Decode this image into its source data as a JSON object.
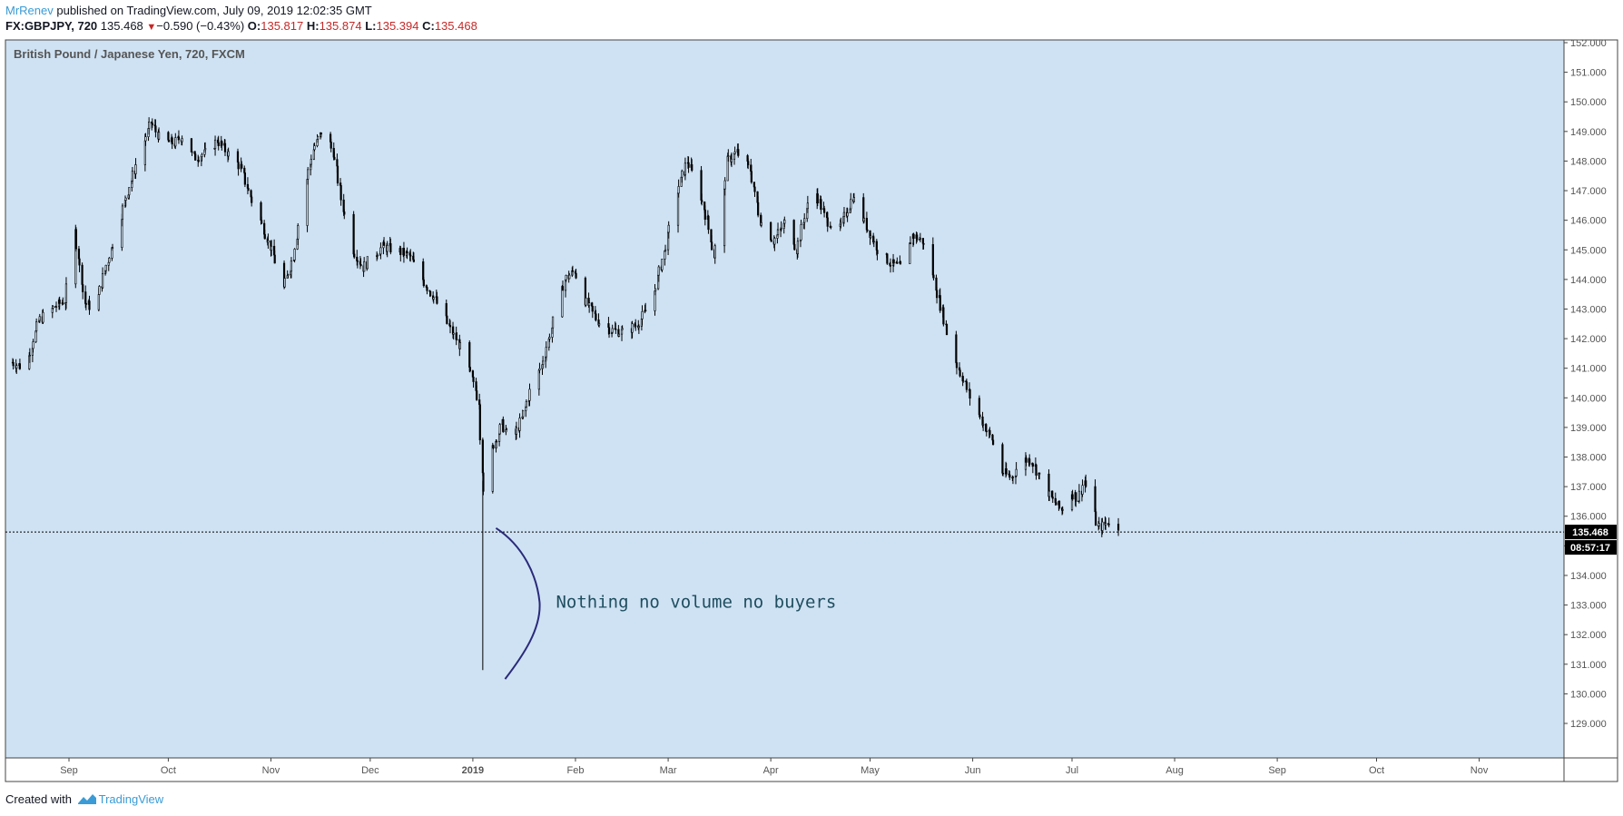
{
  "header": {
    "author": "MrRenev",
    "published_text": " published on TradingView.com, July 09, 2019 12:02:35 GMT",
    "symbol": "FX:GBPJPY, 720",
    "last": "135.468",
    "change": "−0.590 (−0.43%)",
    "o_label": "O:",
    "o_value": "135.817",
    "h_label": "H:",
    "h_value": "135.874",
    "l_label": "L:",
    "l_value": "135.394",
    "c_label": "C:",
    "c_value": "135.468"
  },
  "footer": {
    "created_with": "Created with",
    "brand": "TradingView"
  },
  "chart_data": {
    "type": "line",
    "title": "British Pound / Japanese Yen, 720, FXCM",
    "ylim": [
      128.6,
      152.1
    ],
    "yticks": [
      "129.000",
      "130.000",
      "131.000",
      "132.000",
      "133.000",
      "134.000",
      "135.000",
      "136.000",
      "137.000",
      "138.000",
      "139.000",
      "140.000",
      "141.000",
      "142.000",
      "143.000",
      "144.000",
      "145.000",
      "146.000",
      "147.000",
      "148.000",
      "149.000",
      "150.000",
      "151.000",
      "152.000"
    ],
    "xlim": [
      "2018-08-15",
      "2019-11-30"
    ],
    "xticks": [
      {
        "label": "Sep",
        "date": "2018-09-01"
      },
      {
        "label": "Oct",
        "date": "2018-10-01"
      },
      {
        "label": "Nov",
        "date": "2018-11-01"
      },
      {
        "label": "Dec",
        "date": "2018-12-01"
      },
      {
        "label": "2019",
        "date": "2019-01-01",
        "bold": true
      },
      {
        "label": "Feb",
        "date": "2019-02-01"
      },
      {
        "label": "Mar",
        "date": "2019-03-01"
      },
      {
        "label": "Apr",
        "date": "2019-04-01"
      },
      {
        "label": "May",
        "date": "2019-05-01"
      },
      {
        "label": "Jun",
        "date": "2019-06-01"
      },
      {
        "label": "Jul",
        "date": "2019-07-01"
      },
      {
        "label": "Aug",
        "date": "2019-08-01"
      },
      {
        "label": "Sep",
        "date": "2019-09-01"
      },
      {
        "label": "Oct",
        "date": "2019-10-01"
      },
      {
        "label": "Nov",
        "date": "2019-11-01"
      }
    ],
    "series": [
      {
        "points": [
          [
            "2018-08-15",
            141.2
          ],
          [
            "2018-08-19",
            141.0
          ],
          [
            "2018-08-23",
            142.6
          ],
          [
            "2018-08-27",
            143.0
          ],
          [
            "2018-08-31",
            143.3
          ],
          [
            "2018-09-03",
            145.6
          ],
          [
            "2018-09-06",
            143.2
          ],
          [
            "2018-09-09",
            143.0
          ],
          [
            "2018-09-12",
            144.3
          ],
          [
            "2018-09-15",
            145.4
          ],
          [
            "2018-09-19",
            147.0
          ],
          [
            "2018-09-23",
            148.4
          ],
          [
            "2018-09-26",
            149.3
          ],
          [
            "2018-09-29",
            148.7
          ],
          [
            "2018-10-03",
            148.6
          ],
          [
            "2018-10-06",
            148.9
          ],
          [
            "2018-10-09",
            148.1
          ],
          [
            "2018-10-13",
            148.3
          ],
          [
            "2018-10-16",
            148.7
          ],
          [
            "2018-10-19",
            148.3
          ],
          [
            "2018-10-23",
            147.8
          ],
          [
            "2018-10-26",
            146.8
          ],
          [
            "2018-10-30",
            145.7
          ],
          [
            "2018-11-02",
            144.8
          ],
          [
            "2018-11-05",
            143.7
          ],
          [
            "2018-11-08",
            144.8
          ],
          [
            "2018-11-11",
            146.9
          ],
          [
            "2018-11-14",
            148.4
          ],
          [
            "2018-11-17",
            149.1
          ],
          [
            "2018-11-20",
            148.3
          ],
          [
            "2018-11-23",
            146.4
          ],
          [
            "2018-11-26",
            145.0
          ],
          [
            "2018-11-29",
            144.4
          ],
          [
            "2018-12-02",
            144.8
          ],
          [
            "2018-12-05",
            145.1
          ],
          [
            "2018-12-09",
            145.0
          ],
          [
            "2018-12-13",
            144.8
          ],
          [
            "2018-12-17",
            144.0
          ],
          [
            "2018-12-21",
            143.3
          ],
          [
            "2018-12-25",
            142.4
          ],
          [
            "2018-12-29",
            141.6
          ],
          [
            "2019-01-01",
            140.6
          ],
          [
            "2019-01-03",
            139.9
          ],
          [
            "2019-01-04",
            137.6
          ],
          [
            "2019-01-05",
            135.8
          ],
          [
            "2019-01-07",
            138.3
          ],
          [
            "2019-01-10",
            139.1
          ],
          [
            "2019-01-13",
            138.5
          ],
          [
            "2019-01-16",
            139.3
          ],
          [
            "2019-01-19",
            140.4
          ],
          [
            "2019-01-22",
            141.1
          ],
          [
            "2019-01-26",
            142.8
          ],
          [
            "2019-01-29",
            144.0
          ],
          [
            "2019-02-01",
            144.3
          ],
          [
            "2019-02-04",
            143.3
          ],
          [
            "2019-02-08",
            142.6
          ],
          [
            "2019-02-12",
            142.3
          ],
          [
            "2019-02-16",
            142.2
          ],
          [
            "2019-02-20",
            142.5
          ],
          [
            "2019-02-24",
            143.2
          ],
          [
            "2019-02-28",
            144.9
          ],
          [
            "2019-03-04",
            147.0
          ],
          [
            "2019-03-07",
            148.0
          ],
          [
            "2019-03-10",
            147.2
          ],
          [
            "2019-03-13",
            146.0
          ],
          [
            "2019-03-15",
            144.8
          ],
          [
            "2019-03-17",
            145.9
          ],
          [
            "2019-03-19",
            148.0
          ],
          [
            "2019-03-22",
            148.3
          ],
          [
            "2019-03-26",
            147.7
          ],
          [
            "2019-03-29",
            146.0
          ],
          [
            "2019-04-02",
            145.3
          ],
          [
            "2019-04-06",
            146.0
          ],
          [
            "2019-04-09",
            145.0
          ],
          [
            "2019-04-12",
            146.4
          ],
          [
            "2019-04-15",
            146.9
          ],
          [
            "2019-04-18",
            146.0
          ],
          [
            "2019-04-22",
            145.7
          ],
          [
            "2019-04-26",
            146.8
          ],
          [
            "2019-04-30",
            145.8
          ],
          [
            "2019-05-04",
            144.9
          ],
          [
            "2019-05-08",
            144.5
          ],
          [
            "2019-05-11",
            144.4
          ],
          [
            "2019-05-14",
            145.5
          ],
          [
            "2019-05-17",
            145.3
          ],
          [
            "2019-05-20",
            144.2
          ],
          [
            "2019-05-23",
            142.9
          ],
          [
            "2019-05-26",
            141.5
          ],
          [
            "2019-05-29",
            140.7
          ],
          [
            "2019-06-01",
            139.9
          ],
          [
            "2019-06-04",
            139.2
          ],
          [
            "2019-06-07",
            138.6
          ],
          [
            "2019-06-10",
            137.5
          ],
          [
            "2019-06-13",
            137.3
          ],
          [
            "2019-06-16",
            137.9
          ],
          [
            "2019-06-19",
            137.9
          ],
          [
            "2019-06-22",
            137.2
          ],
          [
            "2019-06-25",
            136.6
          ],
          [
            "2019-06-28",
            136.2
          ],
          [
            "2019-07-01",
            136.8
          ],
          [
            "2019-07-03",
            136.6
          ],
          [
            "2019-07-05",
            137.2
          ],
          [
            "2019-07-07",
            136.4
          ],
          [
            "2019-07-09",
            135.6
          ],
          [
            "2019-07-11",
            135.7
          ],
          [
            "2019-07-13",
            135.9
          ],
          [
            "2019-07-15",
            135.47
          ]
        ],
        "wick_low": {
          "date": "2019-01-04",
          "value": 130.8
        }
      }
    ],
    "last_price": "135.468",
    "countdown": "08:57:17",
    "annotation": "Nothing no volume no buyers",
    "grid": false
  },
  "colors": {
    "plot_bg": "#cfe2f3",
    "candle": "#000000",
    "axis_text": "#555555",
    "annotation_text": "#1f4e5f",
    "annotation_curve": "#2a2a7a",
    "price_tag_bg": "#000000",
    "brand": "#3a9bd6",
    "down": "#c62828"
  }
}
